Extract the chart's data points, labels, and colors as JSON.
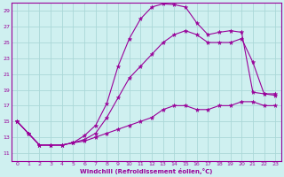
{
  "xlabel": "Windchill (Refroidissement éolien,°C)",
  "bg_color": "#cff0f0",
  "grid_color": "#aad8d8",
  "line_color": "#990099",
  "xlim": [
    -0.5,
    23.5
  ],
  "ylim": [
    10,
    30
  ],
  "yticks": [
    11,
    13,
    15,
    17,
    19,
    21,
    23,
    25,
    27,
    29
  ],
  "xticks": [
    0,
    1,
    2,
    3,
    4,
    5,
    6,
    7,
    8,
    9,
    10,
    11,
    12,
    13,
    14,
    15,
    16,
    17,
    18,
    19,
    20,
    21,
    22,
    23
  ],
  "line1_x": [
    0,
    1,
    2,
    3,
    4,
    5,
    6,
    7,
    8,
    9,
    10,
    11,
    12,
    13,
    14,
    15,
    16,
    17,
    18,
    19,
    20,
    21,
    22,
    23
  ],
  "line1_y": [
    15.0,
    13.5,
    12.0,
    12.0,
    12.0,
    12.3,
    12.5,
    13.0,
    13.5,
    14.0,
    14.5,
    15.0,
    15.5,
    16.5,
    17.0,
    17.0,
    16.5,
    16.5,
    17.0,
    17.0,
    17.5,
    17.5,
    17.0,
    17.0
  ],
  "line2_x": [
    0,
    1,
    2,
    3,
    4,
    5,
    6,
    7,
    8,
    9,
    10,
    11,
    12,
    13,
    14,
    15,
    16,
    17,
    18,
    19,
    20,
    21,
    22,
    23
  ],
  "line2_y": [
    15.0,
    13.5,
    12.0,
    12.0,
    12.0,
    12.3,
    13.2,
    14.5,
    17.3,
    22.0,
    25.5,
    28.0,
    29.5,
    29.9,
    29.8,
    29.5,
    27.5,
    26.0,
    26.3,
    26.5,
    26.3,
    18.7,
    18.5,
    18.5
  ],
  "line3_x": [
    0,
    1,
    2,
    3,
    4,
    5,
    6,
    7,
    8,
    9,
    10,
    11,
    12,
    13,
    14,
    15,
    16,
    17,
    18,
    19,
    20,
    21,
    22,
    23
  ],
  "line3_y": [
    15.0,
    13.5,
    12.0,
    12.0,
    12.0,
    12.3,
    12.7,
    13.5,
    15.5,
    18.0,
    20.5,
    22.0,
    23.5,
    25.0,
    26.0,
    26.5,
    26.0,
    25.0,
    25.0,
    25.0,
    25.5,
    22.5,
    18.5,
    18.3
  ]
}
